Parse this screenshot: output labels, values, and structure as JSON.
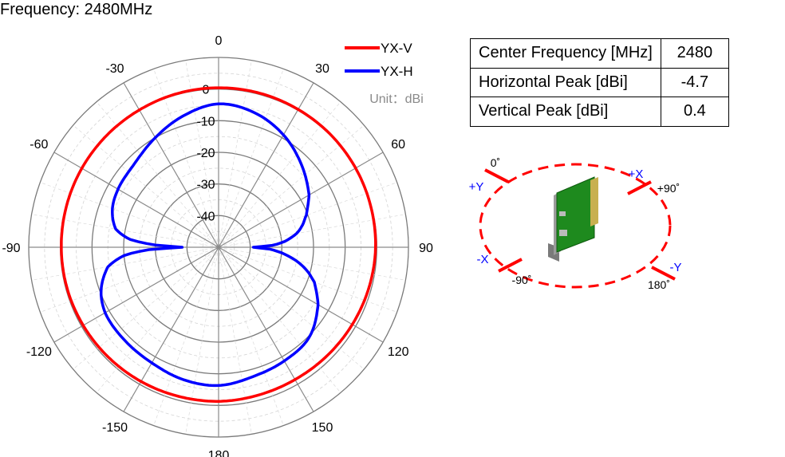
{
  "title": "Frequency: 2480MHz",
  "chart_data": {
    "type": "polar",
    "unit_label": "Unit：dBi",
    "radial_ticks": [
      0,
      -10,
      -20,
      -30,
      -40
    ],
    "r_range": [
      -50,
      10
    ],
    "angle_ticks": [
      {
        "deg": 0,
        "label": "0"
      },
      {
        "deg": 30,
        "label": "30"
      },
      {
        "deg": 60,
        "label": "60"
      },
      {
        "deg": 90,
        "label": "90"
      },
      {
        "deg": 120,
        "label": "120"
      },
      {
        "deg": 150,
        "label": "150"
      },
      {
        "deg": 180,
        "label": "180"
      },
      {
        "deg": -150,
        "label": "-150"
      },
      {
        "deg": -120,
        "label": "-120"
      },
      {
        "deg": -90,
        "label": "-90"
      },
      {
        "deg": -60,
        "label": "-60"
      },
      {
        "deg": -30,
        "label": "-30"
      }
    ],
    "legend_position": "top-right",
    "series": [
      {
        "name": "YX-V",
        "color": "#ff0000",
        "points": [
          [
            0,
            0.4
          ],
          [
            15,
            0.4
          ],
          [
            30,
            0.3
          ],
          [
            45,
            0.2
          ],
          [
            60,
            0.0
          ],
          [
            75,
            -0.2
          ],
          [
            90,
            -0.4
          ],
          [
            105,
            -0.8
          ],
          [
            120,
            -1.2
          ],
          [
            135,
            -1.5
          ],
          [
            150,
            -1.7
          ],
          [
            165,
            -1.6
          ],
          [
            180,
            -1.3
          ],
          [
            -165,
            -1.2
          ],
          [
            -150,
            -1.0
          ],
          [
            -135,
            -0.8
          ],
          [
            -120,
            -0.6
          ],
          [
            -105,
            -0.4
          ],
          [
            -90,
            -0.3
          ],
          [
            -75,
            -0.2
          ],
          [
            -60,
            -0.1
          ],
          [
            -45,
            0.0
          ],
          [
            -30,
            0.1
          ],
          [
            -15,
            0.3
          ]
        ]
      },
      {
        "name": "YX-H",
        "color": "#0000ff",
        "points": [
          [
            0,
            -4.7
          ],
          [
            15,
            -6.0
          ],
          [
            30,
            -9.0
          ],
          [
            45,
            -13.0
          ],
          [
            60,
            -17.0
          ],
          [
            70,
            -20.5
          ],
          [
            75,
            -22.5
          ],
          [
            80,
            -25.0
          ],
          [
            85,
            -29.0
          ],
          [
            88,
            -33.0
          ],
          [
            90,
            -39.0
          ],
          [
            92,
            -34.0
          ],
          [
            95,
            -30.0
          ],
          [
            100,
            -25.0
          ],
          [
            105,
            -21.0
          ],
          [
            110,
            -17.8
          ],
          [
            120,
            -13.7
          ],
          [
            135,
            -9.6
          ],
          [
            150,
            -8.5
          ],
          [
            165,
            -7.7
          ],
          [
            180,
            -6.3
          ],
          [
            -165,
            -6.7
          ],
          [
            -150,
            -7.8
          ],
          [
            -135,
            -8.2
          ],
          [
            -120,
            -8.6
          ],
          [
            -110,
            -10.5
          ],
          [
            -100,
            -14.5
          ],
          [
            -95,
            -20.0
          ],
          [
            -92,
            -28.0
          ],
          [
            -90,
            -38.5
          ],
          [
            -88,
            -30.0
          ],
          [
            -85,
            -22.0
          ],
          [
            -80,
            -17.0
          ],
          [
            -70,
            -14.3
          ],
          [
            -60,
            -13.3
          ],
          [
            -45,
            -12.5
          ],
          [
            -30,
            -10.0
          ],
          [
            -15,
            -7.0
          ]
        ]
      }
    ]
  },
  "summary_table": {
    "rows": [
      {
        "label": "Center Frequency [MHz]",
        "value": "2480"
      },
      {
        "label": "Horizontal Peak [dBi]",
        "value": "-4.7"
      },
      {
        "label": "Vertical Peak [dBi]",
        "value": "0.4"
      }
    ]
  },
  "orientation": {
    "ellipse_color": "#ff0000",
    "axis_color": "#0000ff",
    "labels": {
      "top_angle": "0˚",
      "right_angle": "+90˚",
      "left_angle": "-90˚",
      "bottom_angle": "180˚",
      "plus_y": "+Y",
      "plus_x": "+X",
      "minus_x": "-X",
      "minus_y": "-Y"
    }
  }
}
